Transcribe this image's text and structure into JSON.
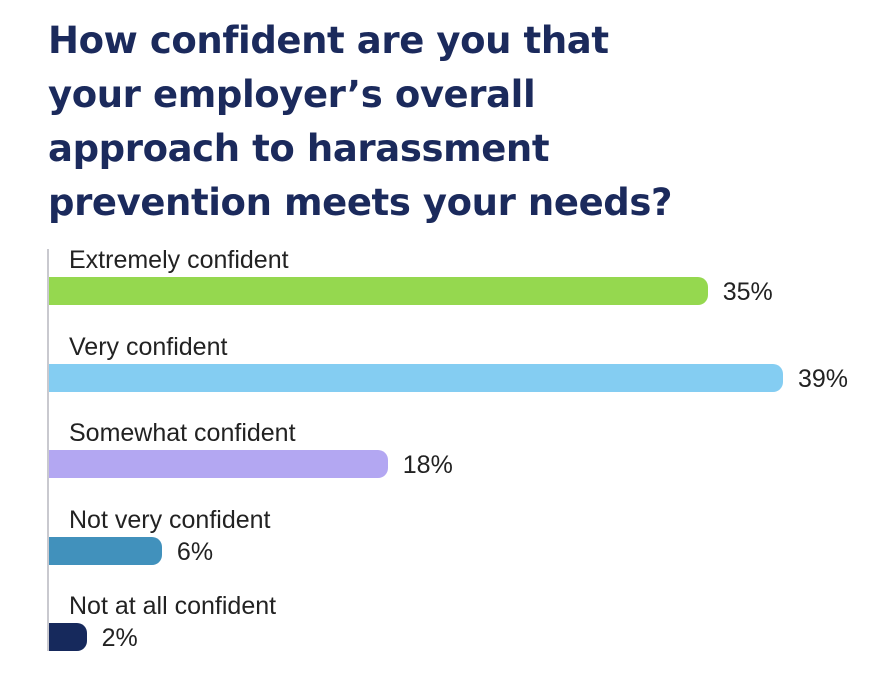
{
  "chart_data": {
    "type": "bar",
    "orientation": "horizontal",
    "title_lines": [
      "How confident are you that",
      "your employer’s overall",
      "approach to harassment",
      "prevention meets your needs?"
    ],
    "categories": [
      "Extremely confident",
      "Very confident",
      "Somewhat confident",
      "Not very confident",
      "Not at all confident"
    ],
    "values": [
      35,
      39,
      18,
      6,
      2
    ],
    "value_labels": [
      "35%",
      "39%",
      "18%",
      "6%",
      "2%"
    ],
    "colors": [
      "#95d84f",
      "#84cdf2",
      "#b3a7f2",
      "#4191bc",
      "#16295c"
    ],
    "unit": "%",
    "xlim": [
      0,
      39
    ],
    "grid": false,
    "legend": "none"
  }
}
